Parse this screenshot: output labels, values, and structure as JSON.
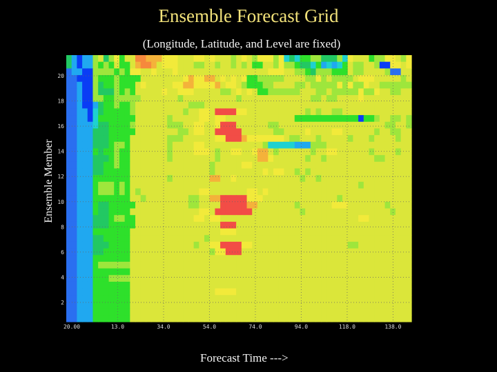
{
  "chart_data": {
    "type": "heatmap",
    "title": "Ensemble Forecast Grid",
    "subtitle": "(Longitude, Latitude, and Level are fixed)",
    "xlabel": "Forecast Time --->",
    "ylabel": "Ensemble Member",
    "x_ticks": [
      "20.00",
      "13.0",
      "34.0",
      "54.0",
      "74.0",
      "94.0",
      "118.0",
      "138.0"
    ],
    "y_ticks": [
      "2",
      "4",
      "6",
      "8",
      "10",
      "12",
      "14",
      "16",
      "18",
      "20"
    ],
    "grid": true,
    "colorscale": [
      "#0a3cf5",
      "#20a8f0",
      "#1ed1d0",
      "#22c863",
      "#2ee02b",
      "#9ee63c",
      "#dbe63a",
      "#f2ea3a",
      "#f4b23a",
      "#f6883c",
      "#f24d46",
      "#ff1f9f",
      "#6a1ed6",
      "#2a6ff0"
    ],
    "rows": [
      "DBABBFGDFHEGGJJIIIHHHGGGHHGHGGGFGHGFHHHFHCDCEEFFDDDFCHGGGEFFHHGFH",
      "DBABBFEFEGEEGIJJIGHHHGGGFFGGFGGFGFGEEGGFHFFEDDCEBCBCEGFFGGFAAHHGH",
      "NBBAAFFFFEFEHHGGHGGGHGGGGGGGGGGGGGGGGGHHHGGFFEDFFFEEEGFFGGGGFNNGG",
      "NNAAAFEEEFEEEEGGGGGGGGHIHHIIGHGHGHEEFFFFFGGGGFFHFGFFFFGHHHGGGGGFG",
      "NNBAAFDEEFEEEGHGGGGGHHIIHHHHIGHHGFEEEFFGGGGFFGFFFFFHFHFFHGGFFFFFF",
      "NNBAAFDDDFEFEGGGGGHGGHHHGGGGGFFGHGHGEEFFFFFFGGGFFGFFFFFHFFHGGFFGG",
      "NNBAAFFEEFFFFFGGGGGGGFGGGGGGGGGGFGGGGGGGGGGGGGFFGFFGGGGHGGGGGGGGG",
      "NNBAABDEEFEEFGGGGGGGGGGFFFGGGGGGGGGGGGGGGGGGGGGGGGGGGGGGGGGGGGGGG",
      "NNBBACDEEEEEFGGGGGGGGGFGGHHGKKKKHHGGGGGGGGGGGFGFGGFFGGGGGGGGGGGGG",
      "NNBBACEEEEEEEGGGGGGFGGGGGHHGHHGGGGGGGGGGGGGEEEEEEEEEEEEAEEFGGFFGF",
      "NNBBBCDDEEEEFGGGGGGFFFGGHHGGHKKKGGGGGGFFGGGGGGGGGGGGGGGGGGGGFFGGF",
      "NNBBBDDDEEEEEGGGGGGGGFFGHHGGKKKKKGGGGGGFFGGGGHGGGGHHGGGGGGFGGFFGG",
      "NNBBBDDDEEEEGGGGGGGFFFGGGGGGHHKKKIHHHHHHHGFFGGGFGGGGGFGGGFGGGGFGG",
      "NNBBBDDDEFFEGGGGGGGFGGGGHHGGGGGGGGGGGFCCCCCBBBFFFGGGGGGGGGGGGGGGG",
      "NNBBBEDEEFEEGGGGGGGFGGGGHHHGFGGHHGGHIIGFGGGGGGFGGHHGGGGGGFGGGGFGG",
      "NNBBBDDDEFEEGGGGGGGFGGGGGGGGFGGGGGGGIIHGGGGGGFGGFGGGGGGGGGFFGGGGG",
      "NNBBBDDEEFEEGGGGGGGGGGGGGGGFGGGGGHHGGGGGGGGGGGGGGGGGGGGGGGGGGGGGG",
      "NNBBBDDEEEEEGGGGGGGGGGGGGGGFGGGGGGGGGHGHHGGFGFGGGGGGGGGGGGGGGGGGG",
      "NNBBBEEEEEEEGGGGGGGFGGGGGGGIIGGHGGGGGGGGGGGGFGGFGGGGGGGGGGGGGGGGG",
      "NNBBBEFFFEFEGGGGGGGGGGGGGGGGGGGGGGGGGGGGGGGGGGGGGGGGGGGFGGGGGGGGG",
      "NNBBBEFFFEFEGFGGGGGGGGGGGHHGGGGGGGHHGHGGGGGGGGGGGGGGGGGGGGGGGGGGG",
      "NNBBBEEEEEEEGGFGGGGGGGGFFGGIIKKKKKHHHGGGGGGGGGGGGGGFGGGGGGGGGGGGG",
      "NNBBBEDDEEEEEGGGGGGGGGGFFGGGGKKKKKIIGGGGGGGFGGGGGGHHHGGGGGGGFGGGG",
      "NNBBBEDDEEEEGGGGGGGGGGGGGHHGKKKKKKKGGGGGGGGGFGGGGGGGGGGGGGGGGFGGG",
      "NNBBBDDDEFFEEGGGGGGGGGGGHHGHHGGGGGGGGGGGGGGGGGGGGGGGGGGHHGGGGGGGG",
      "NNBBBDDDEEEEEGGGGGGGGGGGGGGGGKKKGGGGGGGGGGGGGGGGGGGGGGGGGGGGGGGGG",
      "NNBBBEEEEEEEGGGGGGGGGGGGGGGGGHHHGGGGGGGGGGGGGGGGGGGGGGGGGGGGGGGGG",
      "NNBBBDDEEEEEGGGGGGGGGGGGGGFGGGGGGGGGGGGGGGGGGGGGGGGGGGGGGGGGGGGGG",
      "NNBBBDDDEEEEGGGGGGGGGGGGFGGHHKKKKHHGGGGGGGGGGGGGGGGGGFFGGGGGGGGGG",
      "NNBBBDDEEEEEGGGGGGGGGGGGGGGFHHKKKGGGGGGGGGGGGGGGGGGGGGGGGGGGGGGGG",
      "NNBBBEEEEEEEGGGGGGGGGGGGGGGGGGGGGGGGGGGGGGGGGGGGGGGGGGGGGGGGGGGGG",
      "NNBBBEFFFFFFGGGGGGGGGGGGGGGGGGGGGGGGGGGGGGGGGGGGGGGGGGGGGGGGGGGGG",
      "NNBBBEEEEEEEGGGGGGGGGGGGGGGGGGGGGGGGGGGGGGGGGGGGGGGGGGGGGGGGGGGGG",
      "NNBBBEEEFFFFGGGGGGGGGGGGGGGGGGGGGGGGGGGGGGGGGGGGGGGGGGGGGGGGGGGGG",
      "NNBBBEEEEEEEGGGGGGGGGGGGGGGGGGGGGGGGGGGGGGGGGGGGGGGGGGGGGGGGGGGGG",
      "NNBBBEEEEEEEGGGGGGGGGGGGGGGGHHHHGGGGGGGGGGGGGGGGGGGGGGGGGGGGGGGGG",
      "NNBBBEEEEEEEGGGGGGGGGGGGGGGGGGGGGGGGGGGGGGGGGGGGGGGGGGGGGGGGGGGGG",
      "NNBBBEEEEEEEGGGGGGGGGGGGGGGGGGGGGGGGGGGGGGGGGGGGGGGGGGGGGGGGGGGGG",
      "NNBBBEEEEEEEGGGGGGGGGGGGGGGGGGGGGGGGGGGGGGGGGGGGGGGGGGGGGGGGGGGGG",
      "NNBBBEEEEEEEGGGGGGGGGGGGGGGGGGGGGGGGGGGGGGGGGGGGGGGGGGGGGGGGGGGGG"
    ]
  }
}
